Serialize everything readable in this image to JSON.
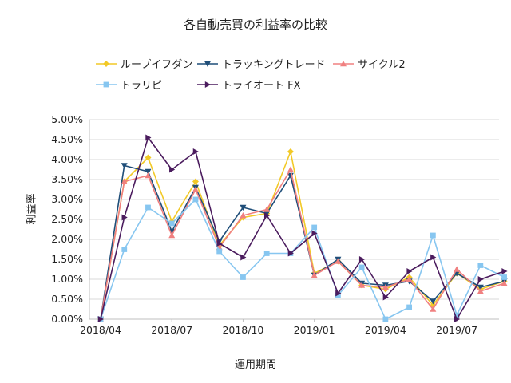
{
  "chart_data": {
    "type": "line",
    "title": "各自動売買の利益率の比較",
    "xlabel": "運用期間",
    "ylabel": "利益率",
    "ylim": [
      0,
      5
    ],
    "y_unit": "%",
    "y_ticks": [
      "0.00%",
      "0.50%",
      "1.00%",
      "1.50%",
      "2.00%",
      "2.50%",
      "3.00%",
      "3.50%",
      "4.00%",
      "4.50%",
      "5.00%"
    ],
    "x_ticks": [
      "2018/04",
      "2018/07",
      "2018/10",
      "2019/01",
      "2019/04",
      "2019/07"
    ],
    "x": [
      "2018/04",
      "2018/05",
      "2018/06",
      "2018/07",
      "2018/08",
      "2018/09",
      "2018/10",
      "2018/11",
      "2018/12",
      "2019/01",
      "2019/02",
      "2019/03",
      "2019/04",
      "2019/05",
      "2019/06",
      "2019/07",
      "2019/08",
      "2019/09"
    ],
    "grid": "horizontal",
    "legend_position": "top",
    "series": [
      {
        "name": "ループイフダン",
        "color": "#f2c927",
        "marker": "diamond",
        "values": [
          0,
          3.45,
          4.05,
          2.45,
          3.45,
          1.85,
          2.55,
          2.65,
          4.2,
          1.15,
          1.45,
          0.85,
          0.75,
          1.05,
          0.35,
          1.15,
          0.75,
          0.95
        ]
      },
      {
        "name": "トラッキングトレード",
        "color": "#1f4e79",
        "marker": "triangle-down",
        "values": [
          0,
          3.85,
          3.7,
          2.2,
          3.3,
          1.95,
          2.8,
          2.65,
          3.6,
          1.1,
          1.5,
          0.9,
          0.85,
          0.95,
          0.45,
          1.15,
          0.8,
          0.95
        ]
      },
      {
        "name": "サイクル2",
        "color": "#f08080",
        "marker": "triangle-up",
        "values": [
          0,
          3.45,
          3.6,
          2.1,
          3.25,
          1.8,
          2.6,
          2.75,
          3.75,
          1.1,
          1.45,
          0.85,
          0.8,
          1.0,
          0.25,
          1.25,
          0.7,
          0.9
        ]
      },
      {
        "name": "トラリピ",
        "color": "#87c6f0",
        "marker": "square",
        "values": [
          0,
          1.75,
          2.8,
          2.4,
          3.0,
          1.7,
          1.05,
          1.65,
          1.65,
          2.3,
          0.6,
          1.3,
          0.0,
          0.3,
          2.1,
          0.1,
          1.35,
          1.05
        ]
      },
      {
        "name": "トライオート FX",
        "color": "#4b1c5e",
        "marker": "triangle-right",
        "values": [
          0,
          2.55,
          4.55,
          3.75,
          4.2,
          1.9,
          1.55,
          2.6,
          1.65,
          2.15,
          0.65,
          1.5,
          0.55,
          1.2,
          1.55,
          0.0,
          1.0,
          1.2
        ]
      }
    ]
  }
}
